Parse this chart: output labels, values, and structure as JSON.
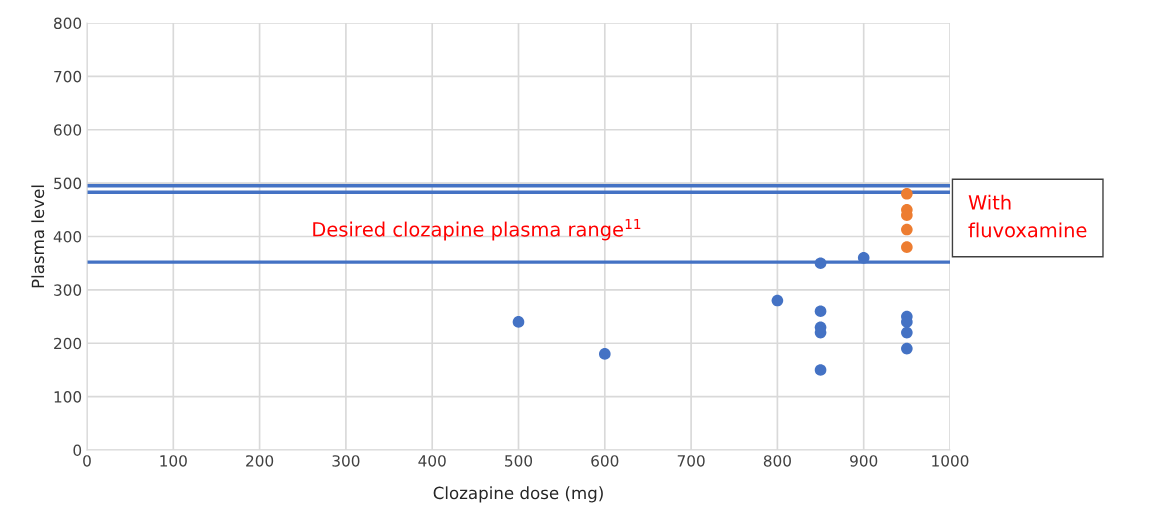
{
  "chart_data": {
    "type": "scatter",
    "xlabel": "Clozapine dose (mg)",
    "ylabel": "Plasma level",
    "xlim": [
      0,
      1000
    ],
    "xticks": [
      0,
      100,
      200,
      300,
      400,
      500,
      600,
      700,
      800,
      900,
      1000
    ],
    "ylim": [
      0,
      800
    ],
    "yticks": [
      0,
      100,
      200,
      300,
      400,
      500,
      600,
      700,
      800
    ],
    "grid": true,
    "marker": "circle",
    "series": [
      {
        "color": "#4472c4",
        "x": [
          500,
          600,
          800,
          850,
          850,
          850,
          850,
          850,
          900,
          950,
          950,
          950,
          950
        ],
        "values": [
          240,
          180,
          280,
          350,
          260,
          230,
          220,
          150,
          360,
          250,
          240,
          220,
          190
        ]
      },
      {
        "color": "#ed7d31",
        "x": [
          950,
          950,
          950,
          950,
          950
        ],
        "values": [
          480,
          450,
          440,
          413,
          380
        ]
      }
    ],
    "ref_lines": [
      {
        "axis": "y",
        "value": 495,
        "color": "#4472c4"
      },
      {
        "axis": "y",
        "value": 483,
        "color": "#4472c4"
      },
      {
        "axis": "y",
        "value": 352,
        "color": "#4472c4"
      }
    ],
    "annotations": [
      "Desired clozapine plasma range$^{11}$",
      "With\nfluvoxamine"
    ]
  }
}
